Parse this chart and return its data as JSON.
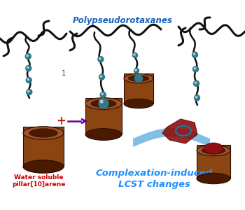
{
  "bg_color": "#ffffff",
  "polymer_color": "#111111",
  "bead_color": "#2e7a8c",
  "cylinder_outer": "#8B4513",
  "cylinder_inner": "#4a1a00",
  "cylinder_top": "#a0522d",
  "cylinder_top_inner": "#3a1000",
  "text_polypseudo": "Polypseudorotaxanes",
  "text_polypseudo_color": "#1565C0",
  "text_complex_1": "Complexation-induced",
  "text_complex_2": "LCST changes",
  "text_complex_color": "#1E90FF",
  "text_water_1": "Water soluble",
  "text_water_2": "pillar[10]arene",
  "text_water_color": "#cc0000",
  "arrow_color": "#660099",
  "wave_color": "#5aaadd",
  "dark_shape_color": "#8b1010",
  "plus_color": "#cc2200",
  "label1_color": "#444444"
}
